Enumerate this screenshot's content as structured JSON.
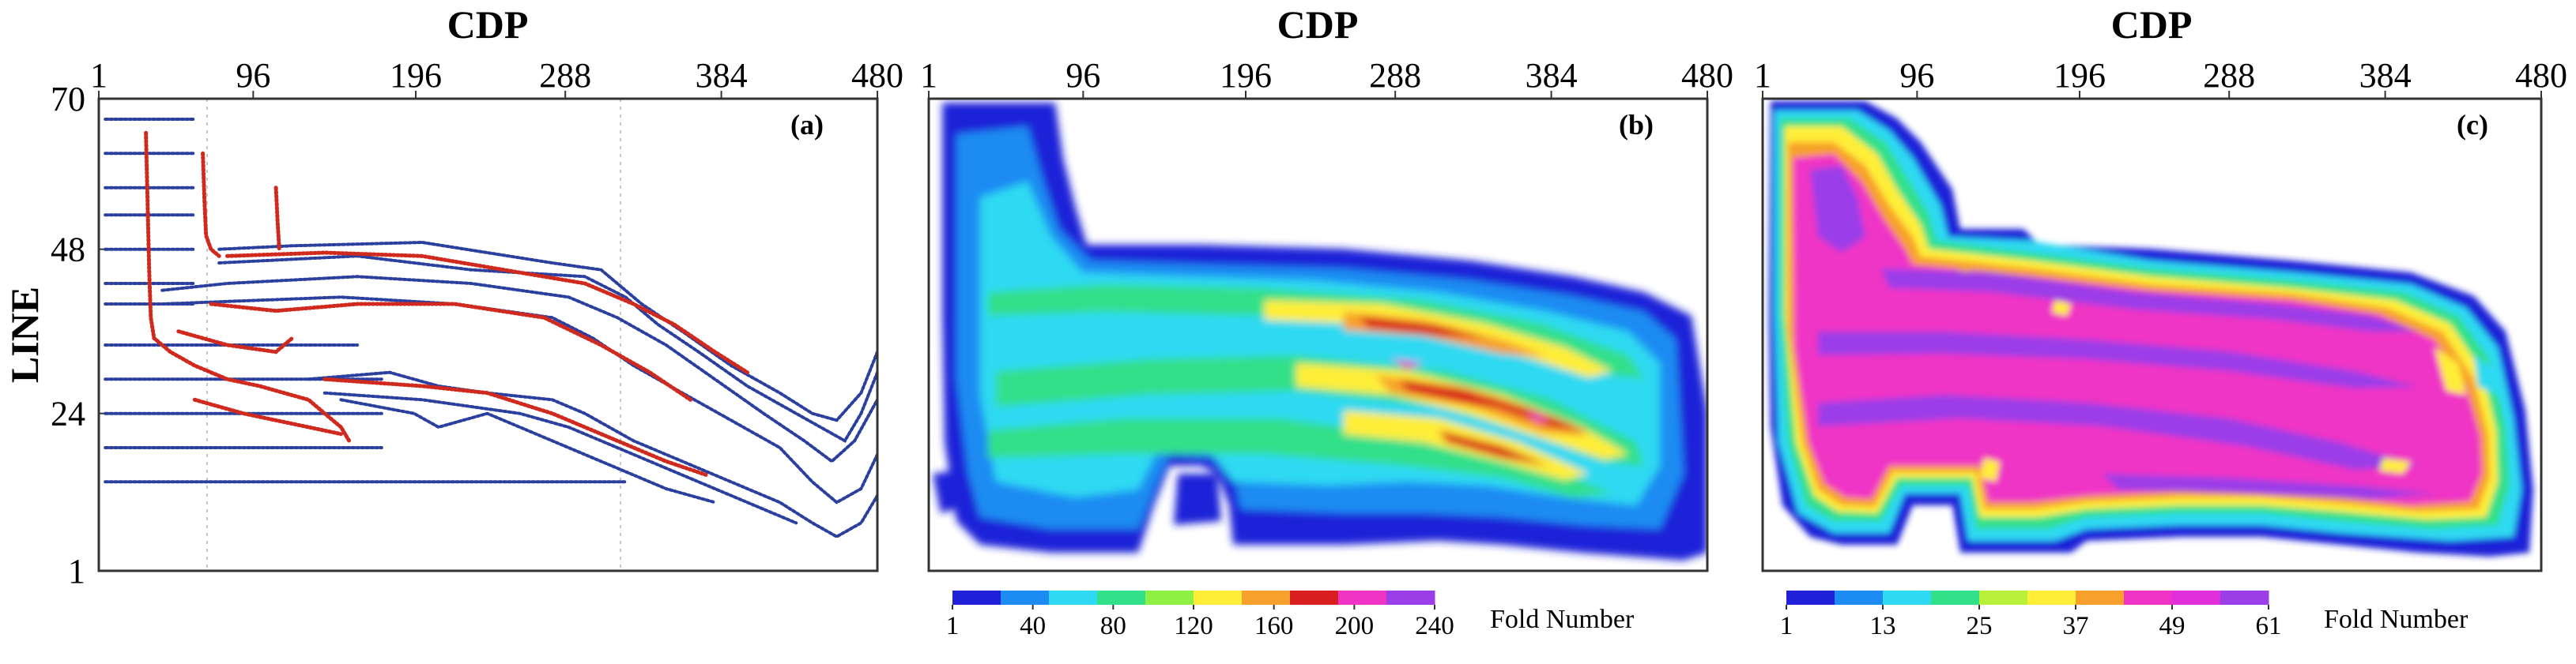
{
  "chart_data": [
    {
      "panel": "(a)",
      "type": "scatter",
      "xlabel": "CDP",
      "ylabel": "LINE",
      "xticks": [
        1,
        96,
        196,
        288,
        384,
        480
      ],
      "yticks": [
        1,
        24,
        48,
        70
      ],
      "xlim": [
        1,
        480
      ],
      "ylim": [
        1,
        70
      ],
      "colors": {
        "lines": "#2b3f9e",
        "points": "#d02a1e"
      },
      "series": [
        {
          "color": "#2b3f9e",
          "lines": [
            {
              "points": [
                [
                  5,
                  67
                ],
                [
                  60,
                  67
                ]
              ]
            },
            {
              "points": [
                [
                  5,
                  62
                ],
                [
                  60,
                  62
                ]
              ]
            },
            {
              "points": [
                [
                  5,
                  57
                ],
                [
                  60,
                  57
                ]
              ]
            },
            {
              "points": [
                [
                  5,
                  53
                ],
                [
                  60,
                  53
                ]
              ]
            },
            {
              "points": [
                [
                  5,
                  48
                ],
                [
                  60,
                  48
                ]
              ]
            },
            {
              "points": [
                [
                  5,
                  43
                ],
                [
                  60,
                  43
                ]
              ]
            },
            {
              "points": [
                [
                  5,
                  40
                ],
                [
                  60,
                  40
                ]
              ]
            },
            {
              "points": [
                [
                  5,
                  34
                ],
                [
                  160,
                  34
                ]
              ]
            },
            {
              "points": [
                [
                  5,
                  29
                ],
                [
                  175,
                  29
                ]
              ]
            },
            {
              "points": [
                [
                  5,
                  24
                ],
                [
                  175,
                  24
                ]
              ]
            },
            {
              "points": [
                [
                  5,
                  19
                ],
                [
                  175,
                  19
                ]
              ]
            },
            {
              "points": [
                [
                  5,
                  14
                ],
                [
                  325,
                  14
                ]
              ]
            },
            {
              "points": [
                [
                  75,
                  48
                ],
                [
                  120,
                  48.5
                ],
                [
                  200,
                  49
                ],
                [
                  280,
                  46
                ],
                [
                  310,
                  45
                ],
                [
                  335,
                  40
                ],
                [
                  360,
                  36
                ],
                [
                  390,
                  31
                ],
                [
                  420,
                  27
                ],
                [
                  440,
                  24
                ],
                [
                  455,
                  23
                ],
                [
                  470,
                  27
                ],
                [
                  480,
                  33
                ]
              ]
            },
            {
              "points": [
                [
                  75,
                  46
                ],
                [
                  160,
                  47
                ],
                [
                  230,
                  45
                ],
                [
                  300,
                  44
                ],
                [
                  325,
                  41
                ],
                [
                  345,
                  37
                ],
                [
                  370,
                  33
                ],
                [
                  400,
                  28
                ],
                [
                  430,
                  24
                ],
                [
                  445,
                  22
                ],
                [
                  460,
                  20
                ],
                [
                  470,
                  24
                ],
                [
                  480,
                  30
                ]
              ]
            },
            {
              "points": [
                [
                  40,
                  42
                ],
                [
                  80,
                  43
                ],
                [
                  160,
                  44
                ],
                [
                  230,
                  43
                ],
                [
                  290,
                  41
                ],
                [
                  320,
                  38
                ],
                [
                  350,
                  34
                ],
                [
                  380,
                  29
                ],
                [
                  410,
                  24
                ],
                [
                  435,
                  20
                ],
                [
                  452,
                  17
                ],
                [
                  466,
                  20
                ],
                [
                  480,
                  26
                ]
              ]
            },
            {
              "points": [
                [
                  40,
                  40
                ],
                [
                  150,
                  41
                ],
                [
                  220,
                  40
                ],
                [
                  280,
                  38
                ],
                [
                  305,
                  35
                ],
                [
                  330,
                  31
                ],
                [
                  360,
                  27
                ],
                [
                  390,
                  23
                ],
                [
                  420,
                  19
                ],
                [
                  440,
                  14
                ],
                [
                  455,
                  11
                ],
                [
                  470,
                  13
                ],
                [
                  480,
                  18
                ]
              ]
            },
            {
              "points": [
                [
                  130,
                  29
                ],
                [
                  180,
                  30
                ],
                [
                  210,
                  28
                ],
                [
                  240,
                  27
                ],
                [
                  280,
                  26
                ],
                [
                  300,
                  24
                ],
                [
                  330,
                  20
                ],
                [
                  360,
                  17
                ],
                [
                  390,
                  14
                ],
                [
                  420,
                  11
                ],
                [
                  440,
                  8
                ],
                [
                  455,
                  6
                ],
                [
                  470,
                  8
                ],
                [
                  480,
                  12
                ]
              ]
            },
            {
              "points": [
                [
                  140,
                  27
                ],
                [
                  200,
                  26
                ],
                [
                  230,
                  25
                ],
                [
                  260,
                  24
                ],
                [
                  290,
                  22
                ],
                [
                  320,
                  19
                ],
                [
                  350,
                  16
                ],
                [
                  380,
                  13
                ],
                [
                  410,
                  10
                ],
                [
                  430,
                  8
                ]
              ]
            },
            {
              "points": [
                [
                  150,
                  26
                ],
                [
                  195,
                  24
                ],
                [
                  210,
                  22
                ],
                [
                  240,
                  24
                ],
                [
                  260,
                  22
                ],
                [
                  290,
                  19
                ],
                [
                  320,
                  16
                ],
                [
                  350,
                  13
                ],
                [
                  380,
                  11
                ]
              ]
            }
          ]
        },
        {
          "color": "#d02a1e",
          "lines": [
            {
              "points": [
                [
                  30,
                  65
                ],
                [
                  31,
                  55
                ],
                [
                  32,
                  45
                ],
                [
                  33,
                  38
                ],
                [
                  35,
                  35
                ],
                [
                  45,
                  33
                ],
                [
                  60,
                  31
                ],
                [
                  80,
                  29
                ],
                [
                  100,
                  28
                ],
                [
                  115,
                  27
                ],
                [
                  130,
                  26
                ],
                [
                  140,
                  24
                ],
                [
                  150,
                  22
                ],
                [
                  155,
                  20
                ]
              ]
            },
            {
              "points": [
                [
                  65,
                  62
                ],
                [
                  66,
                  55
                ],
                [
                  67,
                  50
                ],
                [
                  70,
                  48
                ],
                [
                  75,
                  47
                ]
              ]
            },
            {
              "points": [
                [
                  110,
                  57
                ],
                [
                  111,
                  52
                ],
                [
                  112,
                  48
                ]
              ]
            },
            {
              "points": [
                [
                  80,
                  47
                ],
                [
                  140,
                  47.5
                ],
                [
                  200,
                  47
                ],
                [
                  250,
                  45
                ],
                [
                  300,
                  43
                ],
                [
                  330,
                  40
                ],
                [
                  355,
                  37
                ],
                [
                  380,
                  33
                ],
                [
                  400,
                  30
                ]
              ]
            },
            {
              "points": [
                [
                  70,
                  40
                ],
                [
                  110,
                  39
                ],
                [
                  160,
                  40
                ],
                [
                  220,
                  40
                ],
                [
                  275,
                  38
                ],
                [
                  310,
                  34
                ],
                [
                  340,
                  30
                ],
                [
                  365,
                  26
                ]
              ]
            },
            {
              "points": [
                [
                  50,
                  36
                ],
                [
                  80,
                  34
                ],
                [
                  110,
                  33
                ],
                [
                  120,
                  35
                ]
              ]
            },
            {
              "points": [
                [
                  140,
                  29
                ],
                [
                  200,
                  28
                ],
                [
                  240,
                  27
                ],
                [
                  280,
                  24
                ],
                [
                  320,
                  20
                ],
                [
                  350,
                  17
                ],
                [
                  375,
                  15
                ]
              ]
            },
            {
              "points": [
                [
                  60,
                  26
                ],
                [
                  90,
                  24
                ],
                [
                  130,
                  22
                ],
                [
                  150,
                  21
                ]
              ]
            }
          ]
        }
      ],
      "annotations": [
        "(a)"
      ]
    },
    {
      "panel": "(b)",
      "type": "heatmap",
      "xlabel": "CDP",
      "xticks": [
        1,
        96,
        196,
        288,
        384,
        480
      ],
      "xlim": [
        1,
        480
      ],
      "ylim": [
        1,
        70
      ],
      "colorbar": {
        "title": "Fold Number",
        "ticks": [
          1,
          40,
          80,
          120,
          160,
          200,
          240
        ],
        "colors": [
          "#1f20d8",
          "#1c8cf2",
          "#2fd9f2",
          "#33e08a",
          "#8ef042",
          "#ffee38",
          "#f7a12c",
          "#d81e1e",
          "#ef34c5",
          "#9b3ee8"
        ]
      },
      "annotations": [
        "(b)"
      ]
    },
    {
      "panel": "(c)",
      "type": "heatmap",
      "xlabel": "CDP",
      "xticks": [
        1,
        96,
        196,
        288,
        384,
        480
      ],
      "xlim": [
        1,
        480
      ],
      "ylim": [
        1,
        70
      ],
      "colorbar": {
        "title": "Fold Number",
        "ticks": [
          1,
          13,
          25,
          37,
          49,
          61
        ],
        "colors": [
          "#1f20d8",
          "#1c8cf2",
          "#2fd9f2",
          "#33e08a",
          "#b8f03a",
          "#ffee38",
          "#f7a12c",
          "#ef34c5",
          "#e22fdc",
          "#9b3ee8"
        ]
      },
      "annotations": [
        "(c)"
      ]
    }
  ]
}
